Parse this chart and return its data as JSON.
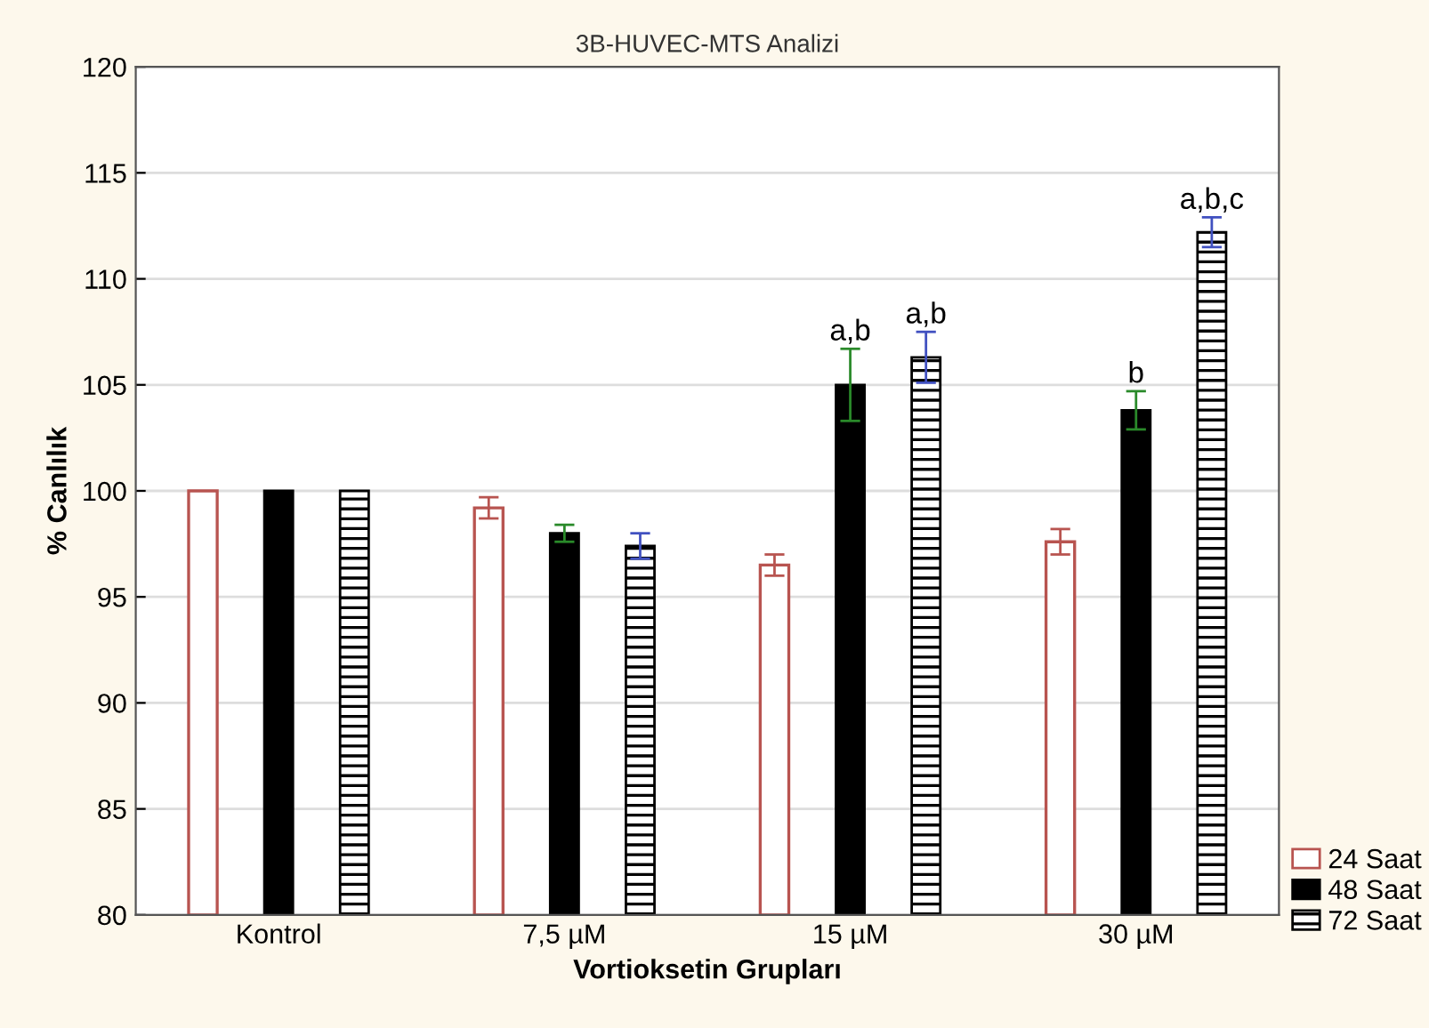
{
  "chart_data": {
    "type": "bar",
    "title": "3B-HUVEC-MTS Analizi",
    "xlabel": "Vortioksetin Grupları",
    "ylabel": "% Canlılık",
    "categories": [
      "Kontrol",
      "7,5 µM",
      "15 µM",
      "30 µM"
    ],
    "series": [
      {
        "name": "24 Saat",
        "color": "#b85450",
        "values": [
          100,
          99.2,
          96.5,
          97.6
        ],
        "errors": [
          null,
          0.5,
          0.5,
          0.6
        ]
      },
      {
        "name": "48 Saat",
        "color": "#000000",
        "values": [
          100,
          98.0,
          105.0,
          103.8
        ],
        "errors": [
          null,
          0.4,
          1.7,
          0.9
        ]
      },
      {
        "name": "72 Saat",
        "color": "#000000",
        "values": [
          100,
          97.4,
          106.3,
          112.2
        ],
        "errors": [
          null,
          0.6,
          1.2,
          0.7
        ]
      }
    ],
    "ylim": [
      80,
      120
    ],
    "yticks": [
      80,
      85,
      90,
      95,
      100,
      105,
      110,
      115,
      120
    ],
    "grid": "y",
    "legend": "bottom right",
    "annotations": [
      "a,b",
      "a,b",
      "b",
      "a,b,c"
    ]
  }
}
